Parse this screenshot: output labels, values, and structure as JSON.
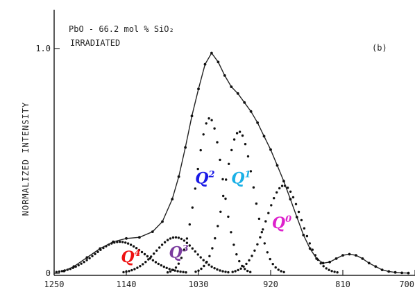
{
  "chart_data": {
    "type": "line",
    "title": "",
    "annotation_lines": [
      "PbO - 66.2 mol % SiO₂",
      "IRRADIATED"
    ],
    "panel_label": "(b)",
    "xlabel": "",
    "ylabel": "NORMALIZED INTENSITY",
    "xlim": [
      1250,
      700
    ],
    "ylim": [
      0,
      1.08
    ],
    "x_reversed": true,
    "grid": false,
    "x_ticks": [
      {
        "value": 1250,
        "label": "1250"
      },
      {
        "value": 1140,
        "label": "1140"
      },
      {
        "value": 1030,
        "label": "1030"
      },
      {
        "value": 920,
        "label": "920"
      },
      {
        "value": 810,
        "label": "810"
      },
      {
        "value": 700,
        "label": "700"
      }
    ],
    "y_ticks": [
      {
        "value": 0,
        "label": "0"
      },
      {
        "value": 1.0,
        "label": "1.0"
      }
    ],
    "measured_spectrum": {
      "x": [
        1235,
        1220,
        1200,
        1180,
        1160,
        1140,
        1120,
        1100,
        1085,
        1070,
        1060,
        1050,
        1040,
        1030,
        1020,
        1010,
        1000,
        990,
        980,
        970,
        960,
        950,
        940,
        930,
        920,
        910,
        900,
        890,
        880,
        870,
        860,
        850,
        840,
        830,
        820,
        810,
        800,
        790,
        780,
        770,
        760,
        750,
        740,
        730,
        720,
        710
      ],
      "y": [
        0.01,
        0.03,
        0.07,
        0.11,
        0.14,
        0.155,
        0.16,
        0.185,
        0.23,
        0.33,
        0.43,
        0.56,
        0.7,
        0.82,
        0.93,
        0.98,
        0.94,
        0.88,
        0.83,
        0.8,
        0.76,
        0.72,
        0.67,
        0.61,
        0.55,
        0.48,
        0.41,
        0.33,
        0.25,
        0.17,
        0.11,
        0.065,
        0.045,
        0.05,
        0.065,
        0.08,
        0.085,
        0.08,
        0.065,
        0.045,
        0.03,
        0.015,
        0.008,
        0.004,
        0.002,
        0.001
      ]
    },
    "series": [
      {
        "name": "Q4",
        "label_text": "Q",
        "label_sup": "4",
        "color": "#ee1111",
        "center": 1150,
        "amplitude": 0.14,
        "sigma": 38
      },
      {
        "name": "Q3",
        "label_text": "Q",
        "label_sup": "3",
        "color": "#7a3b9e",
        "center": 1065,
        "amplitude": 0.16,
        "sigma": 30
      },
      {
        "name": "Q2",
        "label_text": "Q",
        "label_sup": "2",
        "color": "#1a1ae6",
        "center": 1013,
        "amplitude": 0.69,
        "sigma": 20
      },
      {
        "name": "Q1",
        "label_text": "Q",
        "label_sup": "1",
        "color": "#1ab0e6",
        "center": 968,
        "amplitude": 0.63,
        "sigma": 22
      },
      {
        "name": "Q0",
        "label_text": "Q",
        "label_sup": "0",
        "color": "#dd22cc",
        "center": 900,
        "amplitude": 0.39,
        "sigma": 27
      }
    ]
  }
}
